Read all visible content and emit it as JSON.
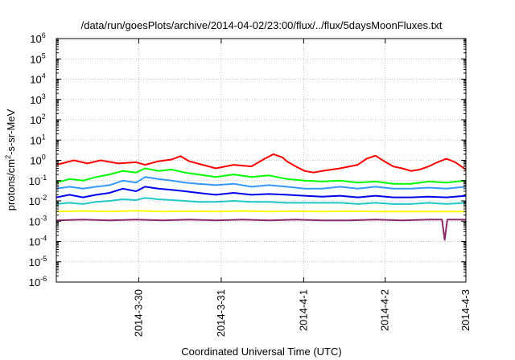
{
  "chart_data": {
    "type": "line",
    "title": "/data/run/goesPlots/archive/2014-04-02/23:00/flux/../flux/5daysMoonFluxes.txt",
    "xlabel": "Coordinated Universal Time (UTC)",
    "ylabel_main": "protons/cm",
    "ylabel_sup": "2",
    "ylabel_tail": "-s-sr-MeV",
    "y_scale": "log",
    "ylim": [
      1e-06,
      1000000
    ],
    "xlim": [
      0,
      4.62
    ],
    "grid": true,
    "yticks": [
      {
        "value": 1e-06,
        "base": "10",
        "exp": "-6"
      },
      {
        "value": 1e-05,
        "base": "10",
        "exp": "-5"
      },
      {
        "value": 0.0001,
        "base": "10",
        "exp": "-4"
      },
      {
        "value": 0.001,
        "base": "10",
        "exp": "-3"
      },
      {
        "value": 0.01,
        "base": "10",
        "exp": "-2"
      },
      {
        "value": 0.1,
        "base": "10",
        "exp": "-1"
      },
      {
        "value": 1,
        "base": "10",
        "exp": "0"
      },
      {
        "value": 10,
        "base": "10",
        "exp": "1"
      },
      {
        "value": 100,
        "base": "10",
        "exp": "2"
      },
      {
        "value": 1000,
        "base": "10",
        "exp": "3"
      },
      {
        "value": 10000,
        "base": "10",
        "exp": "4"
      },
      {
        "value": 100000,
        "base": "10",
        "exp": "5"
      },
      {
        "value": 1000000,
        "base": "10",
        "exp": "6"
      }
    ],
    "xticks": [
      {
        "value": 0.93,
        "label": "2014-3-30"
      },
      {
        "value": 1.86,
        "label": "2014-3-31"
      },
      {
        "value": 2.79,
        "label": "2014-4-1"
      },
      {
        "value": 3.71,
        "label": "2014-4-2"
      },
      {
        "value": 4.62,
        "label": "2014-4-3"
      }
    ],
    "series": [
      {
        "color": "#ff0000",
        "x": [
          0,
          0.2,
          0.35,
          0.5,
          0.7,
          0.9,
          1.0,
          1.15,
          1.3,
          1.4,
          1.5,
          1.65,
          1.8,
          2.0,
          2.2,
          2.35,
          2.45,
          2.55,
          2.6,
          2.7,
          2.8,
          2.9,
          3.0,
          3.2,
          3.4,
          3.5,
          3.6,
          3.7,
          3.8,
          3.9,
          4.0,
          4.1,
          4.2,
          4.3,
          4.4,
          4.5,
          4.62
        ],
        "y": [
          0.6,
          1.0,
          0.7,
          1.0,
          0.7,
          0.8,
          0.6,
          0.9,
          1.1,
          1.6,
          0.9,
          0.6,
          0.4,
          0.6,
          0.5,
          1.2,
          2.0,
          1.4,
          0.9,
          0.5,
          0.3,
          0.25,
          0.3,
          0.4,
          0.6,
          1.2,
          1.7,
          0.9,
          0.5,
          0.4,
          0.3,
          0.35,
          0.5,
          0.8,
          1.2,
          0.8,
          0.35
        ]
      },
      {
        "color": "#00ff00",
        "x": [
          0,
          0.15,
          0.3,
          0.45,
          0.6,
          0.75,
          0.9,
          1.0,
          1.15,
          1.3,
          1.45,
          1.6,
          1.8,
          2.0,
          2.2,
          2.4,
          2.6,
          2.8,
          3.0,
          3.2,
          3.4,
          3.6,
          3.8,
          4.0,
          4.2,
          4.4,
          4.62
        ],
        "y": [
          0.08,
          0.12,
          0.1,
          0.15,
          0.2,
          0.3,
          0.25,
          0.4,
          0.3,
          0.35,
          0.25,
          0.2,
          0.15,
          0.2,
          0.15,
          0.18,
          0.12,
          0.1,
          0.09,
          0.1,
          0.08,
          0.09,
          0.07,
          0.07,
          0.09,
          0.08,
          0.1
        ]
      },
      {
        "color": "#3399ff",
        "x": [
          0,
          0.15,
          0.3,
          0.45,
          0.6,
          0.75,
          0.9,
          1.0,
          1.15,
          1.3,
          1.45,
          1.6,
          1.8,
          2.0,
          2.2,
          2.4,
          2.6,
          2.8,
          3.0,
          3.2,
          3.4,
          3.6,
          3.8,
          4.0,
          4.2,
          4.4,
          4.62
        ],
        "y": [
          0.04,
          0.05,
          0.04,
          0.05,
          0.06,
          0.1,
          0.08,
          0.15,
          0.12,
          0.1,
          0.08,
          0.07,
          0.06,
          0.07,
          0.05,
          0.06,
          0.05,
          0.04,
          0.04,
          0.05,
          0.04,
          0.05,
          0.04,
          0.04,
          0.045,
          0.04,
          0.05
        ]
      },
      {
        "color": "#0000ee",
        "x": [
          0,
          0.15,
          0.3,
          0.45,
          0.6,
          0.75,
          0.9,
          1.0,
          1.15,
          1.3,
          1.45,
          1.6,
          1.8,
          2.0,
          2.2,
          2.4,
          2.6,
          2.8,
          3.0,
          3.2,
          3.4,
          3.6,
          3.8,
          4.0,
          4.2,
          4.4,
          4.62
        ],
        "y": [
          0.015,
          0.02,
          0.015,
          0.02,
          0.025,
          0.04,
          0.03,
          0.05,
          0.04,
          0.035,
          0.03,
          0.025,
          0.02,
          0.025,
          0.02,
          0.022,
          0.02,
          0.018,
          0.016,
          0.018,
          0.015,
          0.018,
          0.015,
          0.015,
          0.016,
          0.015,
          0.018
        ]
      },
      {
        "color": "#20c8c8",
        "x": [
          0,
          0.15,
          0.3,
          0.45,
          0.6,
          0.75,
          0.9,
          1.0,
          1.15,
          1.3,
          1.45,
          1.6,
          1.8,
          2.0,
          2.2,
          2.4,
          2.6,
          2.8,
          3.0,
          3.2,
          3.4,
          3.6,
          3.8,
          4.0,
          4.2,
          4.4,
          4.62
        ],
        "y": [
          0.007,
          0.008,
          0.007,
          0.009,
          0.01,
          0.012,
          0.011,
          0.014,
          0.012,
          0.011,
          0.01,
          0.009,
          0.009,
          0.01,
          0.009,
          0.009,
          0.008,
          0.008,
          0.008,
          0.008,
          0.007,
          0.008,
          0.007,
          0.007,
          0.008,
          0.007,
          0.008
        ]
      },
      {
        "color": "#ffff00",
        "x": [
          0,
          0.3,
          0.6,
          0.9,
          1.2,
          1.5,
          1.8,
          2.1,
          2.4,
          2.7,
          3.0,
          3.3,
          3.6,
          3.9,
          4.2,
          4.4,
          4.5,
          4.62
        ],
        "y": [
          0.003,
          0.0032,
          0.003,
          0.0033,
          0.003,
          0.0031,
          0.003,
          0.0032,
          0.003,
          0.0031,
          0.003,
          0.0031,
          0.003,
          0.003,
          0.003,
          0.003,
          0.003,
          0.003
        ]
      },
      {
        "color": "#8b2a6a",
        "x": [
          0,
          0.3,
          0.6,
          0.9,
          1.2,
          1.5,
          1.8,
          2.1,
          2.4,
          2.7,
          3.0,
          3.3,
          3.6,
          3.9,
          4.2,
          4.35,
          4.38,
          4.41,
          4.44,
          4.62
        ],
        "y": [
          0.0011,
          0.0012,
          0.0011,
          0.0012,
          0.0011,
          0.0012,
          0.0011,
          0.0012,
          0.0011,
          0.0012,
          0.0011,
          0.0011,
          0.0012,
          0.0011,
          0.0012,
          0.0012,
          0.00012,
          0.0012,
          0.0012,
          0.0012
        ]
      }
    ]
  }
}
